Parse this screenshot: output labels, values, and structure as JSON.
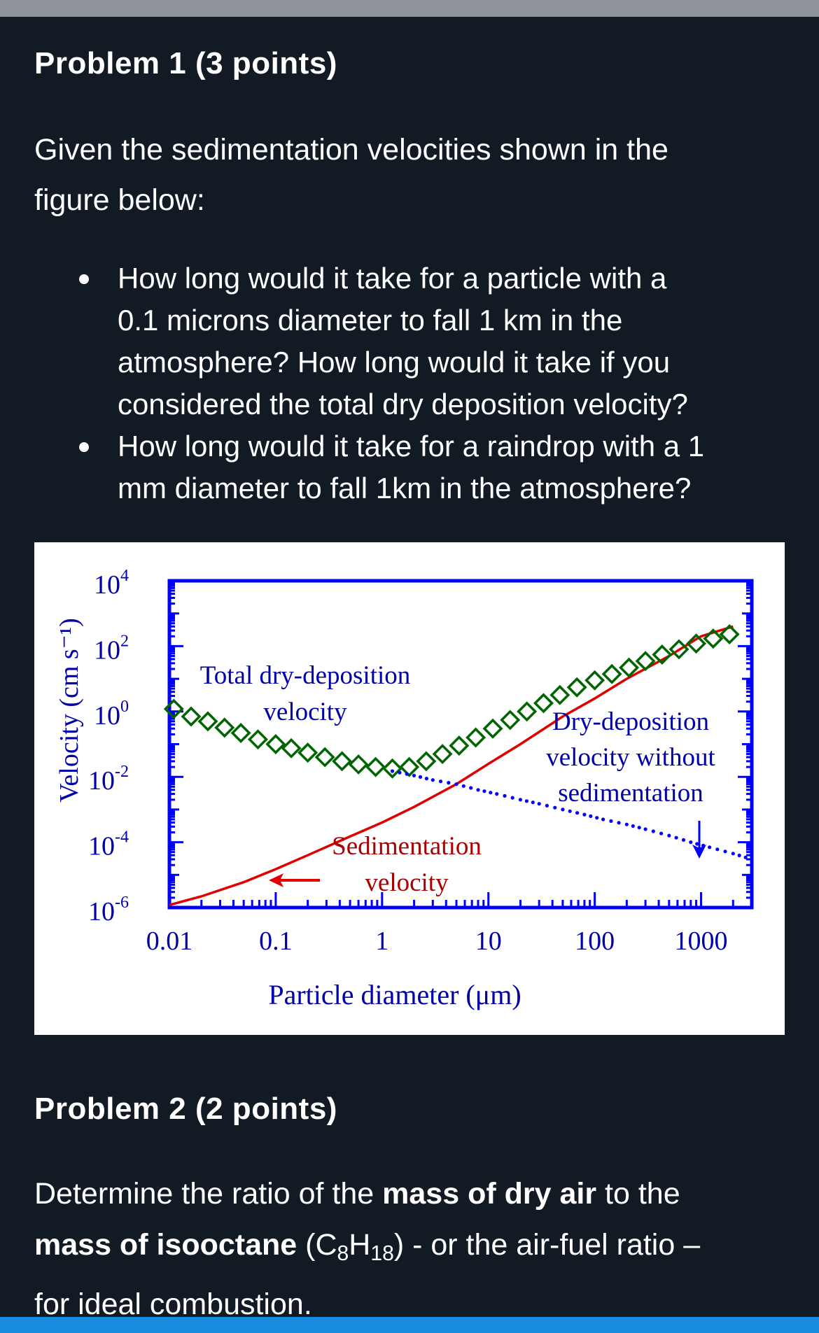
{
  "problem1": {
    "heading": "Problem 1 (3 points)",
    "intro_line1": "Given the sedimentation velocities shown in the",
    "intro_line2": "figure below:",
    "bullet1": {
      "l1": "How long would it take for a particle with a",
      "l2": "0.1 microns diameter to fall 1 km in the",
      "l3": "atmosphere? How long would it take if you",
      "l4": "considered the total dry deposition velocity?"
    },
    "bullet2": {
      "l1": "How long would it take for a raindrop with a 1",
      "l2": "mm diameter to fall 1km in the atmosphere?"
    }
  },
  "chart_data": {
    "type": "line",
    "title": "",
    "xlabel": "Particle diameter (μm)",
    "ylabel": "Velocity (cm s⁻¹)",
    "x_scale": "log",
    "y_scale": "log",
    "xlim": [
      0.01,
      3000
    ],
    "ylim": [
      1e-06,
      10000
    ],
    "x_ticks": [
      "0.01",
      "0.1",
      "1",
      "10",
      "100",
      "1000"
    ],
    "y_ticks": [
      {
        "base": "10",
        "exp": "4",
        "value": 10000
      },
      {
        "base": "10",
        "exp": "2",
        "value": 100
      },
      {
        "base": "10",
        "exp": "0",
        "value": 1
      },
      {
        "base": "10",
        "exp": "-2",
        "value": 0.01
      },
      {
        "base": "10",
        "exp": "-4",
        "value": 0.0001
      },
      {
        "base": "10",
        "exp": "-6",
        "value": 1e-06
      }
    ],
    "annotations": {
      "total_l1": "Total dry-deposition",
      "total_l2": "velocity",
      "drydep_l1": "Dry-deposition",
      "drydep_l2": "velocity without",
      "drydep_l3": "sedimentation",
      "sed_l1": "Sedimentation",
      "sed_l2": "velocity"
    },
    "colors": {
      "axes": "#0000ff",
      "sedimentation": "#e00000",
      "total": "#006400",
      "drydep": "#0000ff",
      "text": "#0000aa"
    },
    "series": [
      {
        "key": "sedimentation",
        "style": "solid-red",
        "x": [
          0.01,
          0.02,
          0.05,
          0.1,
          0.2,
          0.5,
          1,
          2,
          5,
          10,
          20,
          50,
          100,
          200,
          500,
          1000,
          2000
        ],
        "y": [
          1.2e-06,
          2.2e-06,
          6e-06,
          1.5e-05,
          4e-05,
          0.00015,
          0.0004,
          0.0012,
          0.006,
          0.025,
          0.1,
          0.7,
          2.5,
          10,
          50,
          200,
          400
        ]
      },
      {
        "key": "total",
        "style": "green-diamonds",
        "x": [
          0.011,
          0.016,
          0.023,
          0.033,
          0.047,
          0.068,
          0.1,
          0.14,
          0.2,
          0.29,
          0.42,
          0.6,
          0.87,
          1.25,
          1.8,
          2.6,
          3.7,
          5.3,
          7.6,
          11,
          16,
          23,
          33,
          47,
          68,
          100,
          145,
          210,
          300,
          430,
          620,
          900,
          1300,
          1850
        ],
        "y": [
          1.2,
          0.7,
          0.5,
          0.32,
          0.22,
          0.14,
          0.1,
          0.075,
          0.055,
          0.04,
          0.03,
          0.024,
          0.02,
          0.018,
          0.02,
          0.03,
          0.05,
          0.09,
          0.16,
          0.3,
          0.55,
          1,
          1.8,
          3.2,
          5.5,
          9,
          14,
          22,
          35,
          55,
          80,
          120,
          170,
          230
        ]
      },
      {
        "key": "drydep",
        "style": "blue-dotted",
        "x": [
          1.25,
          2,
          3,
          5,
          8,
          12,
          20,
          30,
          50,
          80,
          120,
          200,
          300,
          500,
          800,
          1200,
          2000,
          3000
        ],
        "y": [
          0.015,
          0.011,
          0.008,
          0.006,
          0.004,
          0.003,
          0.002,
          0.0015,
          0.001,
          0.0007,
          0.0005,
          0.00035,
          0.00025,
          0.00016,
          0.0001,
          7e-05,
          4.5e-05,
          3e-05
        ]
      }
    ]
  },
  "problem2": {
    "heading": "Problem 2 (2 points)",
    "t1": "Determine the ratio of the ",
    "b1": "mass of dry air",
    "t2": " to the",
    "b2": "mass of isooctane",
    "t3": " (C",
    "sub8": "8",
    "t4": "H",
    "sub18": "18",
    "t5": ") - or the air-fuel ratio –",
    "t6": "for ideal combustion."
  }
}
